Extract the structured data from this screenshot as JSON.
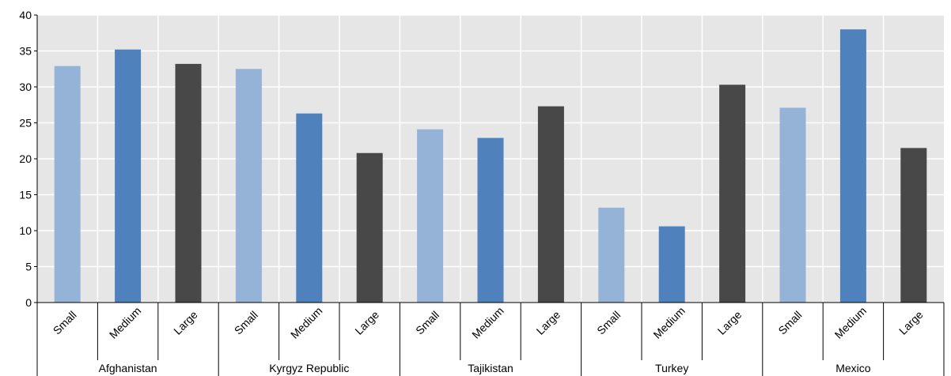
{
  "chart_data": {
    "type": "bar",
    "title": "",
    "xlabel": "",
    "ylabel": "",
    "ylim": [
      0,
      40
    ],
    "yticks": [
      0,
      5,
      10,
      15,
      20,
      25,
      30,
      35,
      40
    ],
    "grid": true,
    "groups": [
      "Afghanistan",
      "Kyrgyz Republic",
      "Tajikistan",
      "Turkey",
      "Mexico"
    ],
    "categories": [
      "Small",
      "Medium",
      "Large"
    ],
    "colors": {
      "Small": "#95b3d7",
      "Medium": "#4f81bd",
      "Large": "#484848",
      "plot_background": "#e6e6e6",
      "gridline": "#ffffff"
    },
    "bars": [
      {
        "group": "Afghanistan",
        "category": "Small",
        "value": 32.9
      },
      {
        "group": "Afghanistan",
        "category": "Medium",
        "value": 35.2
      },
      {
        "group": "Afghanistan",
        "category": "Large",
        "value": 33.2
      },
      {
        "group": "Kyrgyz Republic",
        "category": "Small",
        "value": 32.5
      },
      {
        "group": "Kyrgyz Republic",
        "category": "Medium",
        "value": 26.3
      },
      {
        "group": "Kyrgyz Republic",
        "category": "Large",
        "value": 20.8
      },
      {
        "group": "Tajikistan",
        "category": "Small",
        "value": 24.1
      },
      {
        "group": "Tajikistan",
        "category": "Medium",
        "value": 22.9
      },
      {
        "group": "Tajikistan",
        "category": "Large",
        "value": 27.3
      },
      {
        "group": "Turkey",
        "category": "Small",
        "value": 13.2
      },
      {
        "group": "Turkey",
        "category": "Medium",
        "value": 10.6
      },
      {
        "group": "Turkey",
        "category": "Large",
        "value": 30.3
      },
      {
        "group": "Mexico",
        "category": "Small",
        "value": 27.1
      },
      {
        "group": "Mexico",
        "category": "Medium",
        "value": 38.0
      },
      {
        "group": "Mexico",
        "category": "Large",
        "value": 21.5
      }
    ]
  }
}
